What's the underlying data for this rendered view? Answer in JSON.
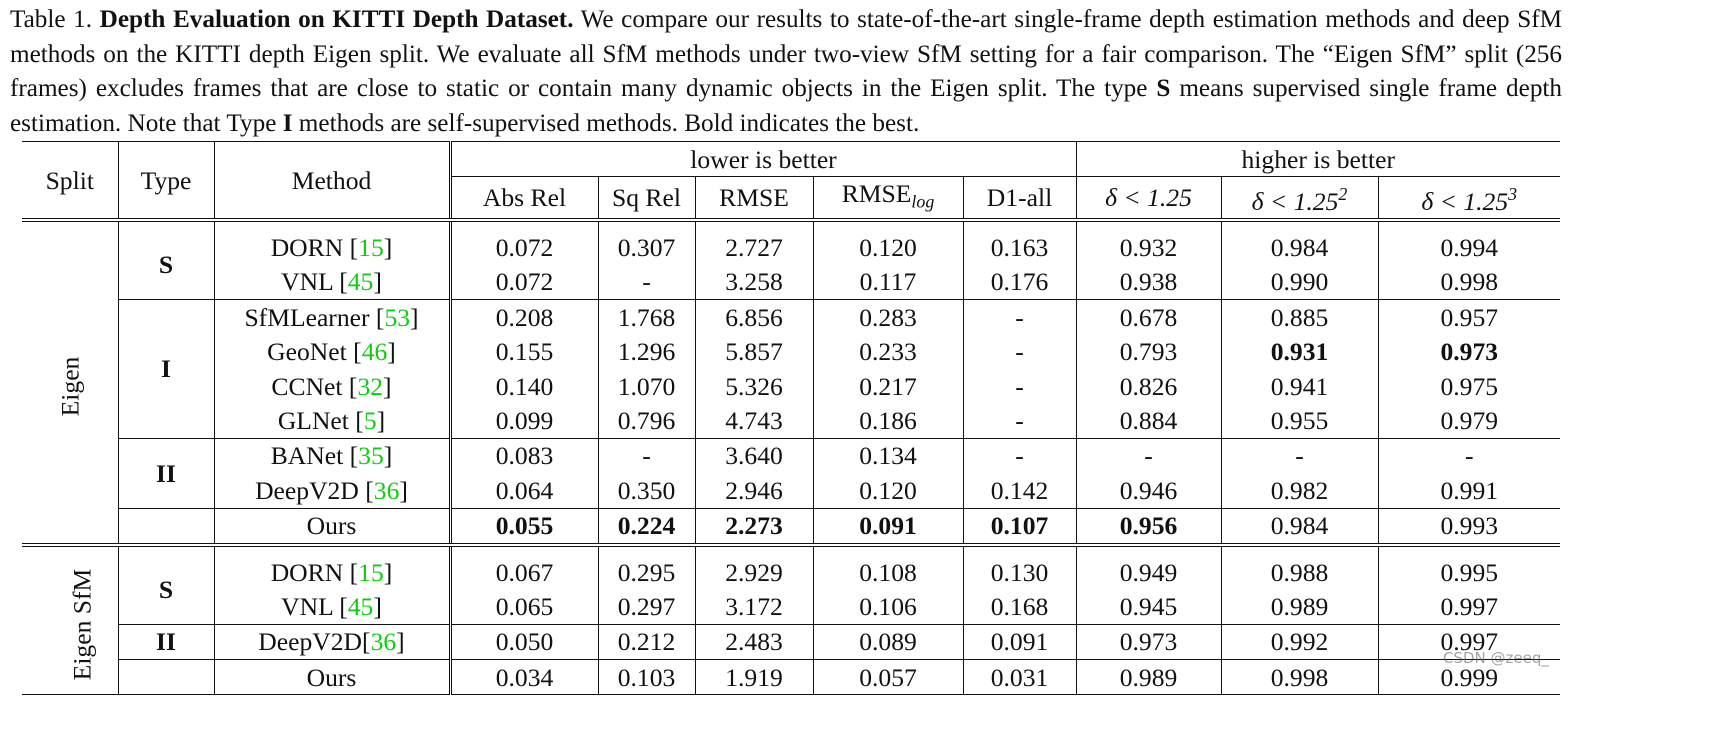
{
  "caption": {
    "label": "Table 1.",
    "title": "Depth Evaluation on KITTI Depth Dataset.",
    "text_part1": " We compare our results to state-of-the-art single-frame depth estimation methods and deep SfM methods on the KITTI depth Eigen split. We evaluate all SfM methods under two-view SfM setting for a fair comparison. The “Eigen SfM” split (256 frames) excludes frames that are close to static or contain many dynamic objects in the Eigen split. The type ",
    "type_s": "S",
    "text_part2": " means supervised single frame depth estimation. Note that Type ",
    "type_i": "I",
    "text_part3": " methods are self-supervised methods. Bold indicates the best."
  },
  "header": {
    "split": "Split",
    "type": "Type",
    "method": "Method",
    "lower": "lower is better",
    "higher": "higher is better",
    "cols": {
      "abs_rel": "Abs Rel",
      "sq_rel": "Sq Rel",
      "rmse": "RMSE",
      "rmse_log_base": "RMSE",
      "rmse_log_sub": "log",
      "d1_all": "D1-all",
      "delta_base": "δ < 1.25",
      "delta_sup2": "2",
      "delta_sup3": "3"
    }
  },
  "sections": [
    {
      "split": "Eigen",
      "groups": [
        {
          "type": "S",
          "rows": [
            {
              "name": "DORN ",
              "cite": "15",
              "vals": [
                "0.072",
                "0.307",
                "2.727",
                "0.120",
                "0.163",
                "0.932",
                "0.984",
                "0.994"
              ]
            },
            {
              "name": "VNL ",
              "cite": "45",
              "vals": [
                "0.072",
                "-",
                "3.258",
                "0.117",
                "0.176",
                "0.938",
                "0.990",
                "0.998"
              ]
            }
          ]
        },
        {
          "type": "I",
          "rows": [
            {
              "name": "SfMLearner ",
              "cite": "53",
              "vals": [
                "0.208",
                "1.768",
                "6.856",
                "0.283",
                "-",
                "0.678",
                "0.885",
                "0.957"
              ]
            },
            {
              "name": "GeoNet ",
              "cite": "46",
              "vals": [
                "0.155",
                "1.296",
                "5.857",
                "0.233",
                "-",
                "0.793",
                "0.931",
                "0.973"
              ]
            },
            {
              "name": "CCNet ",
              "cite": "32",
              "vals": [
                "0.140",
                "1.070",
                "5.326",
                "0.217",
                "-",
                "0.826",
                "0.941",
                "0.975"
              ]
            },
            {
              "name": "GLNet ",
              "cite": "5",
              "vals": [
                "0.099",
                "0.796",
                "4.743",
                "0.186",
                "-",
                "0.884",
                "0.955",
                "0.979"
              ]
            }
          ]
        },
        {
          "type": "II",
          "rows": [
            {
              "name": "BANet ",
              "cite": "35",
              "vals": [
                "0.083",
                "-",
                "3.640",
                "0.134",
                "-",
                "-",
                "-",
                "-"
              ]
            },
            {
              "name": "DeepV2D ",
              "cite": "36",
              "vals": [
                "0.064",
                "0.350",
                "2.946",
                "0.120",
                "0.142",
                "0.946",
                "0.982",
                "0.991"
              ]
            }
          ]
        },
        {
          "type": "",
          "rows": [
            {
              "name": "Ours",
              "cite": "",
              "vals": [
                "0.055",
                "0.224",
                "2.273",
                "0.091",
                "0.107",
                "0.956",
                "0.984",
                "0.993"
              ]
            }
          ]
        }
      ]
    },
    {
      "split": "Eigen SfM",
      "groups": [
        {
          "type": "S",
          "rows": [
            {
              "name": "DORN ",
              "cite": "15",
              "vals": [
                "0.067",
                "0.295",
                "2.929",
                "0.108",
                "0.130",
                "0.949",
                "0.988",
                "0.995"
              ]
            },
            {
              "name": "VNL ",
              "cite": "45",
              "vals": [
                "0.065",
                "0.297",
                "3.172",
                "0.106",
                "0.168",
                "0.945",
                "0.989",
                "0.997"
              ]
            }
          ]
        },
        {
          "type": "II",
          "rows": [
            {
              "name": "DeepV2D",
              "cite": "36",
              "vals": [
                "0.050",
                "0.212",
                "2.483",
                "0.089",
                "0.091",
                "0.973",
                "0.992",
                "0.997"
              ]
            }
          ]
        },
        {
          "type": "",
          "rows": [
            {
              "name": "Ours",
              "cite": "",
              "vals": [
                "0.034",
                "0.103",
                "1.919",
                "0.057",
                "0.031",
                "0.989",
                "0.998",
                "0.999"
              ]
            }
          ]
        }
      ]
    }
  ],
  "bold_cells": [
    [
      0,
      1,
      1,
      6
    ],
    [
      0,
      1,
      1,
      7
    ],
    [
      0,
      3,
      0,
      0
    ],
    [
      0,
      3,
      0,
      1
    ],
    [
      0,
      3,
      0,
      2
    ],
    [
      0,
      3,
      0,
      3
    ],
    [
      0,
      3,
      0,
      4
    ],
    [
      0,
      3,
      0,
      5
    ],
    [
      1,
      3,
      0,
      0
    ],
    [
      1,
      3,
      0,
      1
    ],
    [
      1,
      3,
      0,
      2
    ],
    [
      1,
      3,
      0,
      3
    ],
    [
      1,
      3,
      0,
      4
    ],
    [
      1,
      3,
      0,
      5
    ],
    [
      1,
      3,
      0,
      6
    ],
    [
      1,
      3,
      0,
      7
    ]
  ],
  "watermark": "CSDN @zeeq_"
}
